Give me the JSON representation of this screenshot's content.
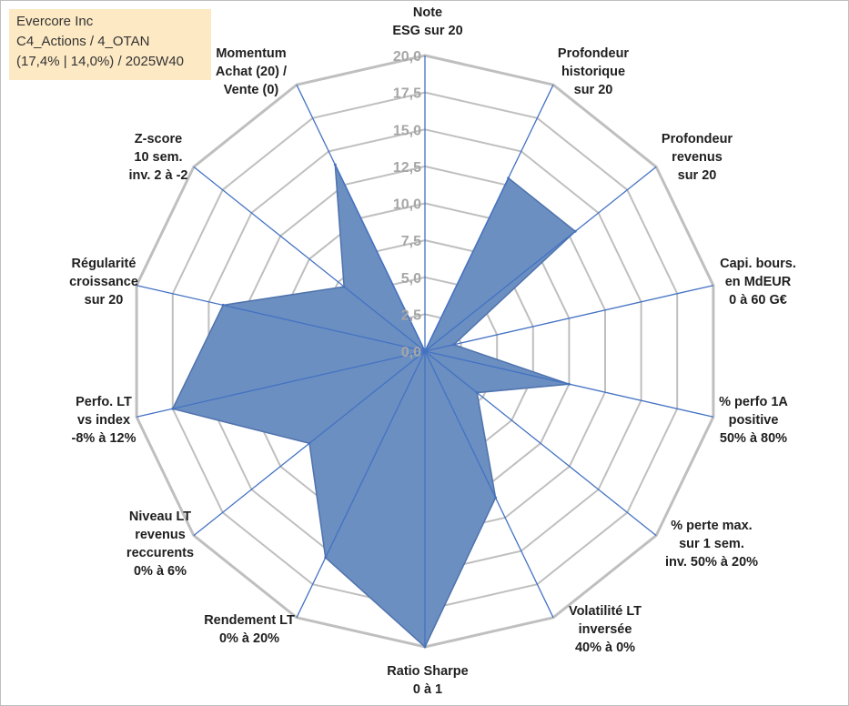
{
  "info": {
    "line1": "Evercore Inc",
    "line2": "C4_Actions / 4_OTAN",
    "line3": "(17,4% | 14,0%) / 2025W40"
  },
  "chart_data": {
    "type": "radar",
    "title": "",
    "rmax": 20,
    "ticks": [
      "0,0",
      "2,5",
      "5,0",
      "7,5",
      "10,0",
      "12,5",
      "15,0",
      "17,5",
      "20,0"
    ],
    "axes": [
      {
        "lines": [
          "Note",
          "ESG sur 20"
        ],
        "value": 0
      },
      {
        "lines": [
          "Profondeur",
          "historique",
          "sur 20"
        ],
        "value": 13
      },
      {
        "lines": [
          "Profondeur",
          "revenus",
          "sur 20"
        ],
        "value": 13
      },
      {
        "lines": [
          "Capi. bours.",
          "en MdEUR",
          "0 à 60 G€"
        ],
        "value": 2
      },
      {
        "lines": [
          "% perfo 1A",
          "positive",
          "50% à 80%"
        ],
        "value": 10
      },
      {
        "lines": [
          "% perte max.",
          "sur 1 sem.",
          "inv. 50% à 20%"
        ],
        "value": 4.5
      },
      {
        "lines": [
          "Volatilité LT",
          "inversée",
          "40% à 0%"
        ],
        "value": 11
      },
      {
        "lines": [
          "Ratio Sharpe",
          "0 à 1"
        ],
        "value": 20
      },
      {
        "lines": [
          "Rendement LT",
          "0% à 20%"
        ],
        "value": 15.5
      },
      {
        "lines": [
          "Niveau LT",
          "revenus",
          "reccurents",
          "0% à 6%"
        ],
        "value": 10
      },
      {
        "lines": [
          "Perfo. LT",
          "vs index",
          "-8% à 12%"
        ],
        "value": 17.5
      },
      {
        "lines": [
          "Régularité",
          "croissance",
          "sur 20"
        ],
        "value": 14
      },
      {
        "lines": [
          "Z-score",
          "10 sem.",
          "inv. 2 à -2"
        ],
        "value": 7
      },
      {
        "lines": [
          "Momentum",
          "Achat (20) /",
          "Vente (0)"
        ],
        "value": 14
      }
    ],
    "colors": {
      "fill": "#6b8fc0",
      "stroke": "#4f72ad",
      "grid": "#bfbfbf",
      "spoke": "#4472c4",
      "tick": "#a6a6a6"
    }
  }
}
